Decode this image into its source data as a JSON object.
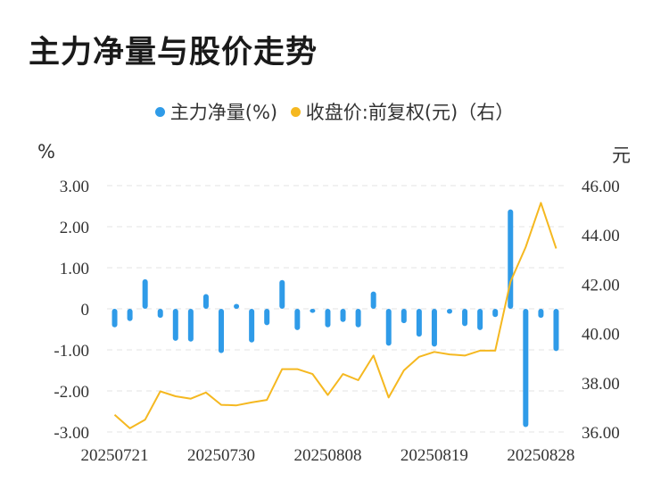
{
  "title": "主力净量与股价走势",
  "legend": {
    "series1": "主力净量(%)",
    "series2": "收盘价:前复权(元)（右）"
  },
  "units": {
    "left": "%",
    "right": "元"
  },
  "colors": {
    "bar": "#2f9be8",
    "line": "#f5b820",
    "grid": "#e3e3e3"
  },
  "chart_data": {
    "type": "bar+line",
    "x_tick_labels": [
      "20250721",
      "20250730",
      "20250808",
      "20250819",
      "20250828"
    ],
    "x_tick_indices": [
      0,
      7,
      14,
      21,
      28
    ],
    "left_axis": {
      "ylim": [
        -3.0,
        3.0
      ],
      "ticks": [
        "3.00",
        "2.00",
        "1.00",
        "0",
        "-1.00",
        "-2.00",
        "-3.00"
      ],
      "tick_values": [
        3,
        2,
        1,
        0,
        -1,
        -2,
        -3
      ]
    },
    "right_axis": {
      "ylim": [
        36.0,
        46.0
      ],
      "ticks": [
        "46.00",
        "44.00",
        "42.00",
        "40.00",
        "38.00",
        "36.00"
      ],
      "tick_values": [
        46,
        44,
        42,
        40,
        38,
        36
      ]
    },
    "series": [
      {
        "name": "主力净量(%)",
        "type": "bar",
        "axis": "left",
        "values": [
          -0.45,
          -0.3,
          0.72,
          -0.22,
          -0.78,
          -0.8,
          0.36,
          -1.08,
          0.12,
          -0.82,
          -0.4,
          0.7,
          -0.52,
          -0.1,
          -0.45,
          -0.32,
          -0.45,
          0.42,
          -0.9,
          -0.35,
          -0.68,
          -0.92,
          -0.12,
          -0.42,
          -0.52,
          -0.2,
          2.42,
          -2.88,
          -0.22,
          -1.03
        ]
      },
      {
        "name": "收盘价:前复权(元)（右）",
        "type": "line",
        "axis": "right",
        "values": [
          36.7,
          36.15,
          36.5,
          37.65,
          37.45,
          37.35,
          37.6,
          37.1,
          37.08,
          37.2,
          37.3,
          38.55,
          38.55,
          38.35,
          37.5,
          38.35,
          38.1,
          39.1,
          37.4,
          38.5,
          39.05,
          39.25,
          39.15,
          39.1,
          39.3,
          39.3,
          42.1,
          43.5,
          45.3,
          43.45
        ]
      }
    ]
  }
}
